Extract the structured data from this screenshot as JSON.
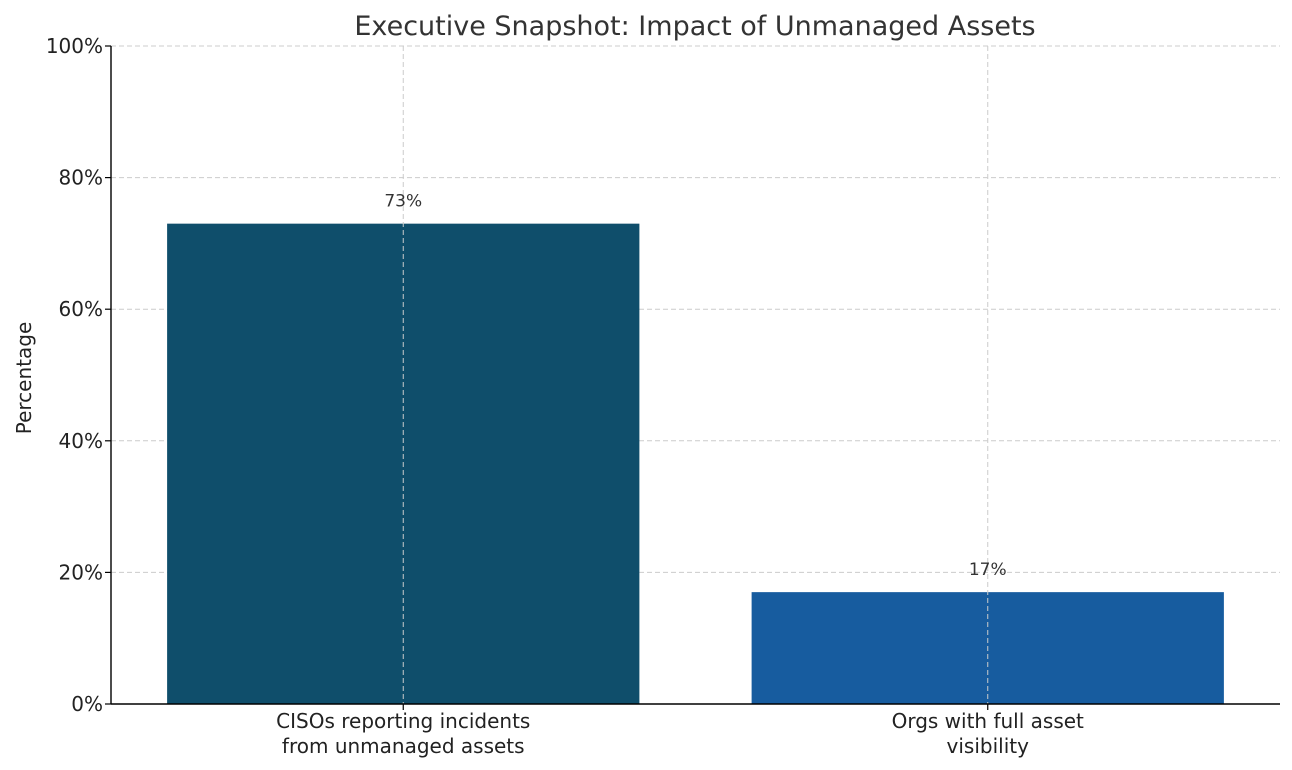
{
  "chart_data": {
    "type": "bar",
    "title": "Executive Snapshot: Impact of Unmanaged Assets",
    "xlabel": "",
    "ylabel": "Percentage",
    "categories": [
      [
        "CISOs reporting incidents",
        "from unmanaged assets"
      ],
      [
        "Orgs with full asset",
        "visibility"
      ]
    ],
    "values": [
      73,
      17
    ],
    "value_labels": [
      "73%",
      "17%"
    ],
    "colors": [
      "#0f4e6b",
      "#175c9f"
    ],
    "ylim": [
      0,
      100
    ],
    "yticks": [
      0,
      20,
      40,
      60,
      80,
      100
    ],
    "ytick_labels": [
      "0%",
      "20%",
      "40%",
      "60%",
      "80%",
      "100%"
    ],
    "grid": true
  }
}
